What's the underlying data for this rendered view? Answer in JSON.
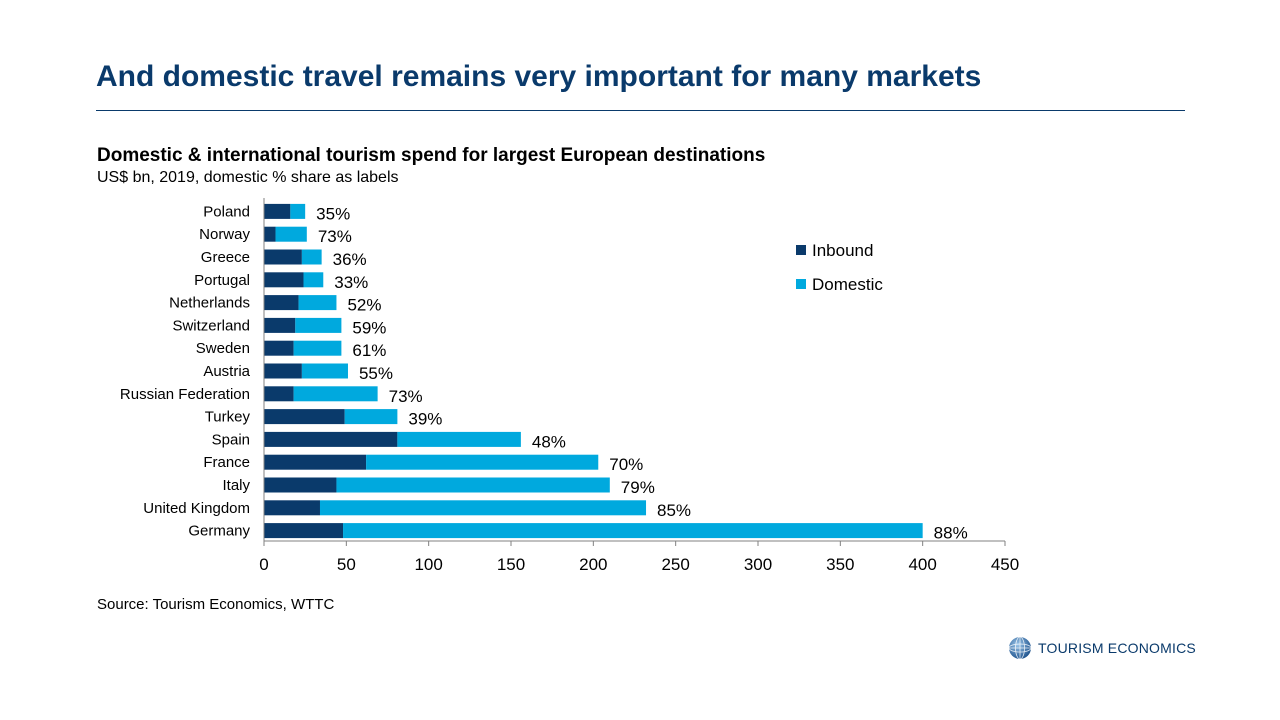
{
  "slide": {
    "title": "And domestic travel remains very important for many markets",
    "source": "Source: Tourism Economics, WTTC",
    "logo_text": "TOURISM ECONOMICS"
  },
  "chart_data": {
    "type": "bar",
    "orientation": "horizontal",
    "stacked": true,
    "title": "Domestic & international tourism spend for largest European destinations",
    "subtitle": "US$ bn, 2019, domestic % share as labels",
    "categories": [
      "Poland",
      "Norway",
      "Greece",
      "Portugal",
      "Netherlands",
      "Switzerland",
      "Sweden",
      "Austria",
      "Russian Federation",
      "Turkey",
      "Spain",
      "France",
      "Italy",
      "United Kingdom",
      "Germany"
    ],
    "series": [
      {
        "name": "Inbound",
        "color": "#0a3a6b",
        "values": [
          16,
          7,
          23,
          24,
          21,
          19,
          18,
          23,
          18,
          49,
          81,
          62,
          44,
          34,
          48
        ]
      },
      {
        "name": "Domestic",
        "color": "#00a9de",
        "values": [
          9,
          19,
          12,
          12,
          23,
          28,
          29,
          28,
          51,
          32,
          75,
          141,
          166,
          198,
          352
        ]
      }
    ],
    "data_labels": [
      "35%",
      "73%",
      "36%",
      "33%",
      "52%",
      "59%",
      "61%",
      "55%",
      "73%",
      "39%",
      "48%",
      "70%",
      "79%",
      "85%",
      "88%"
    ],
    "xlim": [
      0,
      450
    ],
    "xticks": [
      "0",
      "50",
      "100",
      "150",
      "200",
      "250",
      "300",
      "350",
      "400",
      "450"
    ],
    "grid": false,
    "legend": "top-right"
  }
}
